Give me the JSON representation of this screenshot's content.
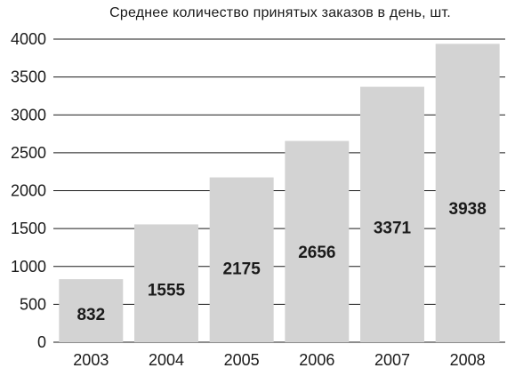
{
  "chart_data": {
    "type": "bar",
    "title": "Среднее количество принятых заказов в день, шт.",
    "xlabel": "",
    "ylabel": "",
    "categories": [
      "2003",
      "2004",
      "2005",
      "2006",
      "2007",
      "2008"
    ],
    "values": [
      832,
      1555,
      2175,
      2656,
      3371,
      3938
    ],
    "data_labels": [
      "832",
      "1555",
      "2175",
      "2656",
      "3371",
      "3938"
    ],
    "ylim": [
      0,
      4000
    ],
    "yticks": [
      0,
      500,
      1000,
      1500,
      2000,
      2500,
      3000,
      3500,
      4000
    ],
    "grid": true,
    "bar_color": "#d3d3d3",
    "grid_color": "#1a1a1a"
  }
}
